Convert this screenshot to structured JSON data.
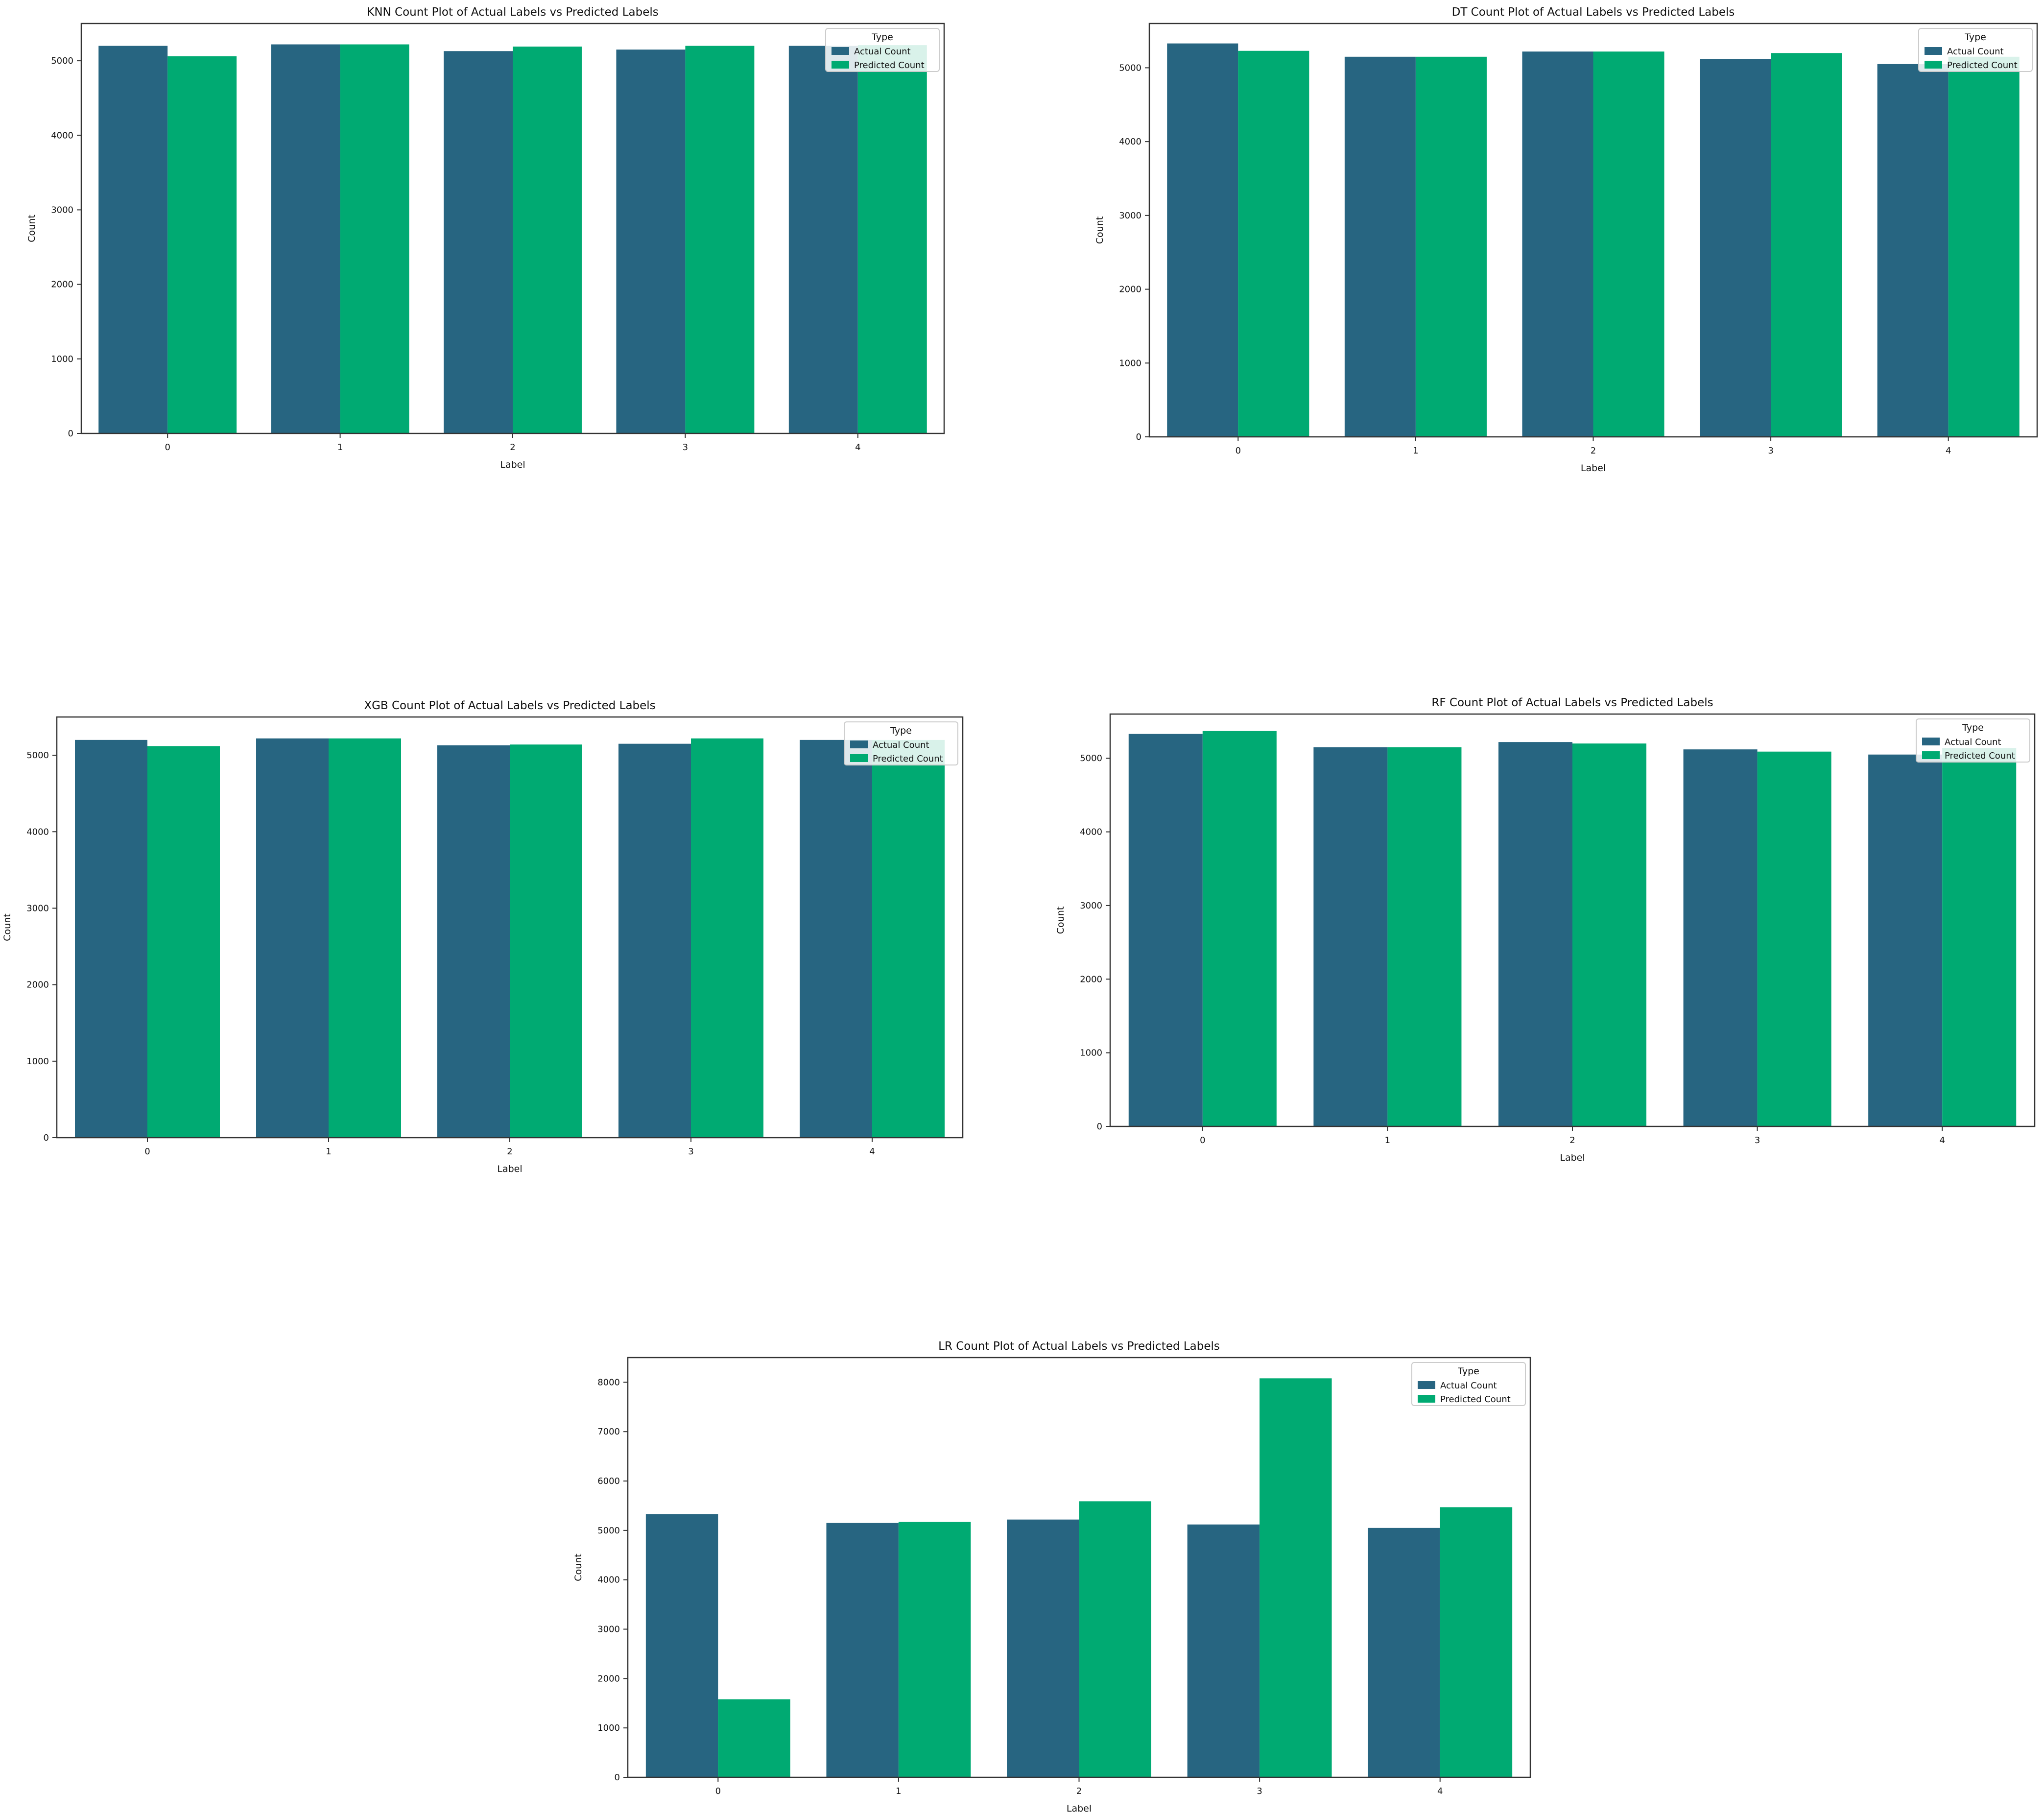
{
  "colors": {
    "actual": "#276581",
    "predicted": "#00aa72",
    "axis": "#333333"
  },
  "legend": {
    "title": "Type",
    "placement": "upper right"
  },
  "chart_data": [
    {
      "type": "bar",
      "title": "KNN Count Plot of Actual Labels vs Predicted Labels",
      "xlabel": "Label",
      "ylabel": "Count",
      "categories": [
        "0",
        "1",
        "2",
        "3",
        "4"
      ],
      "ylim": [
        0,
        5500
      ],
      "yticks": [
        0,
        1000,
        2000,
        3000,
        4000,
        5000
      ],
      "grid": false,
      "legend_position": "upper right",
      "series": [
        {
          "name": "Actual Count",
          "values": [
            5200,
            5220,
            5130,
            5150,
            5200
          ]
        },
        {
          "name": "Predicted Count",
          "values": [
            5060,
            5220,
            5190,
            5200,
            5210
          ]
        }
      ]
    },
    {
      "type": "bar",
      "title": "DT Count Plot of Actual Labels vs Predicted Labels",
      "xlabel": "Label",
      "ylabel": "Count",
      "categories": [
        "0",
        "1",
        "2",
        "3",
        "4"
      ],
      "ylim": [
        0,
        5600
      ],
      "yticks": [
        0,
        1000,
        2000,
        3000,
        4000,
        5000
      ],
      "grid": false,
      "legend_position": "upper right",
      "series": [
        {
          "name": "Actual Count",
          "values": [
            5330,
            5150,
            5220,
            5120,
            5050
          ]
        },
        {
          "name": "Predicted Count",
          "values": [
            5230,
            5150,
            5220,
            5200,
            5150
          ]
        }
      ]
    },
    {
      "type": "bar",
      "title": "XGB Count Plot of Actual Labels vs Predicted Labels",
      "xlabel": "Label",
      "ylabel": "Count",
      "categories": [
        "0",
        "1",
        "2",
        "3",
        "4"
      ],
      "ylim": [
        0,
        5500
      ],
      "yticks": [
        0,
        1000,
        2000,
        3000,
        4000,
        5000
      ],
      "grid": false,
      "legend_position": "upper right",
      "series": [
        {
          "name": "Actual Count",
          "values": [
            5200,
            5220,
            5130,
            5150,
            5200
          ]
        },
        {
          "name": "Predicted Count",
          "values": [
            5120,
            5220,
            5140,
            5220,
            5200
          ]
        }
      ]
    },
    {
      "type": "bar",
      "title": "RF Count Plot of Actual Labels vs Predicted Labels",
      "xlabel": "Label",
      "ylabel": "Count",
      "categories": [
        "0",
        "1",
        "2",
        "3",
        "4"
      ],
      "ylim": [
        0,
        5600
      ],
      "yticks": [
        0,
        1000,
        2000,
        3000,
        4000,
        5000
      ],
      "grid": false,
      "legend_position": "upper right",
      "series": [
        {
          "name": "Actual Count",
          "values": [
            5330,
            5150,
            5220,
            5120,
            5050
          ]
        },
        {
          "name": "Predicted Count",
          "values": [
            5370,
            5150,
            5200,
            5090,
            5140
          ]
        }
      ]
    },
    {
      "type": "bar",
      "title": "LR Count Plot of Actual Labels vs Predicted Labels",
      "xlabel": "Label",
      "ylabel": "Count",
      "categories": [
        "0",
        "1",
        "2",
        "3",
        "4"
      ],
      "ylim": [
        0,
        8500
      ],
      "yticks": [
        0,
        1000,
        2000,
        3000,
        4000,
        5000,
        6000,
        7000,
        8000
      ],
      "grid": false,
      "legend_position": "upper right",
      "series": [
        {
          "name": "Actual Count",
          "values": [
            5330,
            5150,
            5220,
            5120,
            5050
          ]
        },
        {
          "name": "Predicted Count",
          "values": [
            1580,
            5170,
            5590,
            8080,
            5470
          ]
        }
      ]
    }
  ]
}
